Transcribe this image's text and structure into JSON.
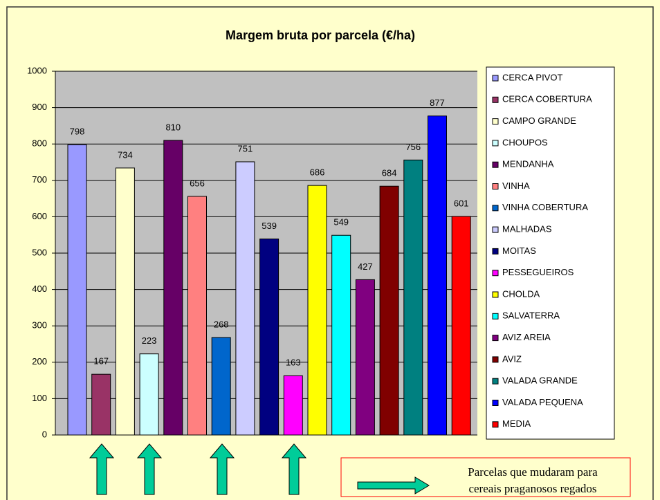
{
  "chart_data": {
    "type": "bar",
    "title": "Margem bruta por parcela (€/ha)",
    "categories": [
      "CERCA PIVOT",
      "CERCA  COBERTURA",
      "CAMPO GRANDE",
      "CHOUPOS",
      "MENDANHA",
      "VINHA",
      "VINHA COBERTURA",
      "MALHADAS",
      "MOITAS",
      "PESSEGUEIROS",
      "CHOLDA",
      "SALVATERRA",
      "AVIZ AREIA",
      "AVIZ",
      "VALADA GRANDE",
      "VALADA PEQUENA",
      "MEDIA"
    ],
    "values": [
      798,
      167,
      734,
      223,
      810,
      656,
      268,
      751,
      539,
      163,
      686,
      549,
      427,
      684,
      756,
      877,
      601
    ],
    "colors": [
      "#9999ff",
      "#993366",
      "#ffffcc",
      "#ccffff",
      "#660066",
      "#ff8080",
      "#0066cc",
      "#ccccff",
      "#000080",
      "#ff00ff",
      "#ffff00",
      "#00ffff",
      "#800080",
      "#800000",
      "#008080",
      "#0000ff",
      "#ff0000"
    ],
    "ylim": [
      0,
      1000
    ],
    "yticks": [
      0,
      100,
      200,
      300,
      400,
      500,
      600,
      700,
      800,
      900,
      1000
    ],
    "grid": true,
    "legend": "right",
    "annotation": [
      "Parcelas que mudaram para",
      "cereais praganosos regados"
    ]
  }
}
